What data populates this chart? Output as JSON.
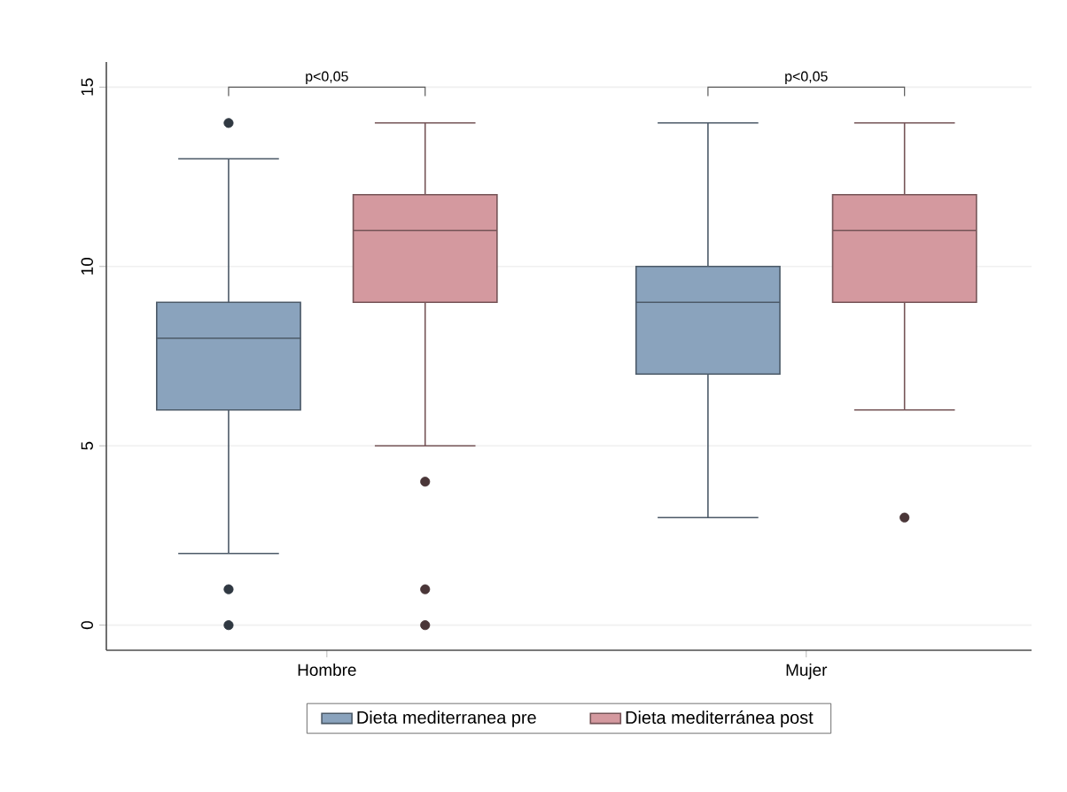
{
  "chart_data": {
    "type": "box",
    "categories": [
      "Hombre",
      "Mujer"
    ],
    "series": [
      {
        "name": "Dieta mediterranea pre",
        "color": "#8aa3bd",
        "boxes": [
          {
            "low": 2,
            "q1": 6,
            "median": 8,
            "q3": 9,
            "high": 13,
            "outliers": [
              14,
              1,
              0
            ]
          },
          {
            "low": 3,
            "q1": 7,
            "median": 9,
            "q3": 10,
            "high": 14
          }
        ]
      },
      {
        "name": "Dieta mediterránea post",
        "color": "#d4999f",
        "boxes": [
          {
            "low": 5,
            "q1": 9,
            "median": 11,
            "q3": 12,
            "high": 14,
            "outliers": [
              4,
              1,
              0
            ]
          },
          {
            "low": 6,
            "q1": 9,
            "median": 11,
            "q3": 12,
            "high": 14,
            "outliers": [
              3
            ]
          }
        ]
      }
    ],
    "ylim": [
      -0.7,
      15.7
    ],
    "yticks": [
      0,
      5,
      10,
      15
    ],
    "grid": "y",
    "legend": "bottom",
    "annotations": [
      "p<0,05",
      "p<0,05"
    ]
  }
}
